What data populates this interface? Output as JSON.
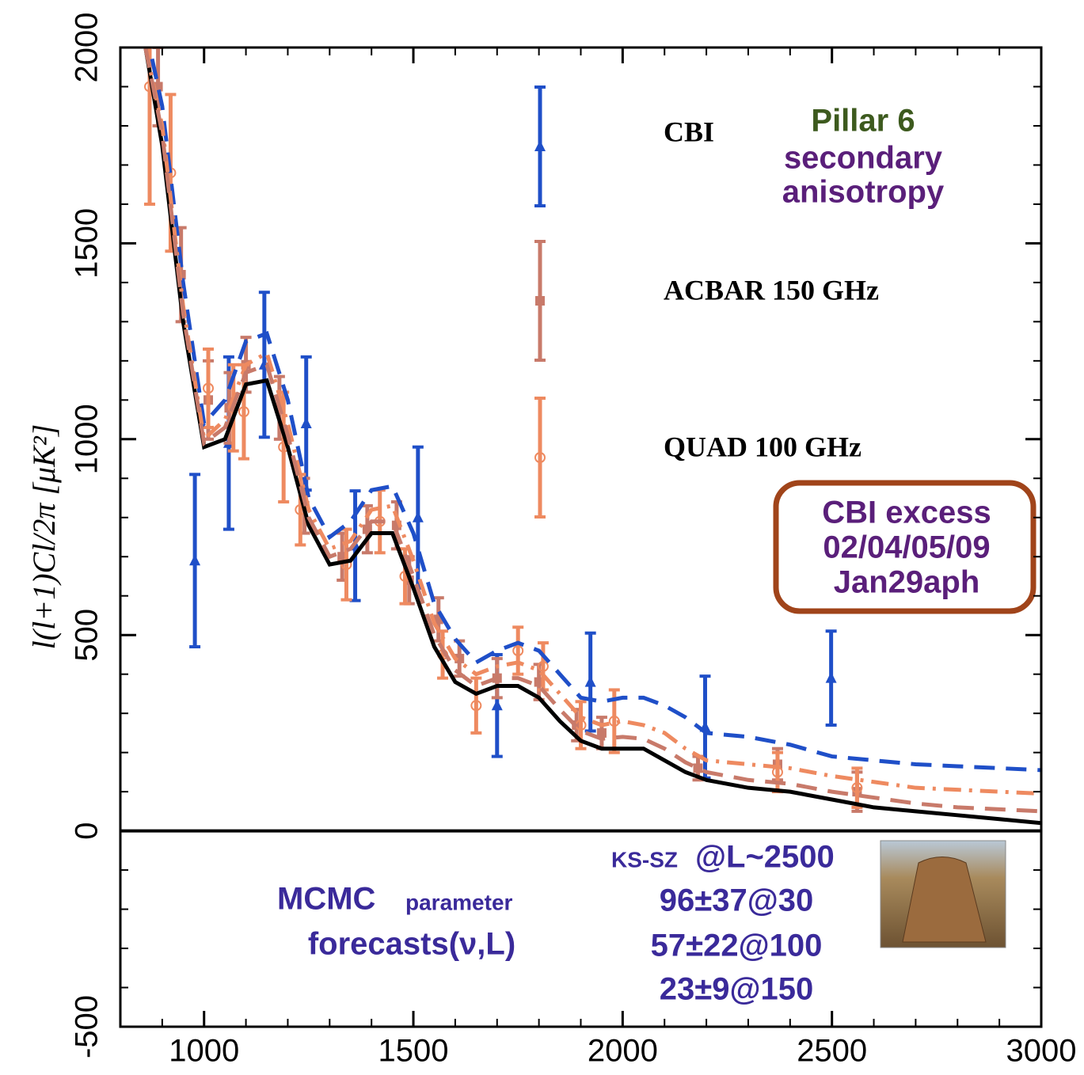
{
  "chart_data": {
    "type": "errorbar",
    "ylabel": "l(l+1)Cl/2π [μK²]",
    "xlim": [
      800,
      3000
    ],
    "xticks": [
      1000,
      1500,
      2000,
      2500,
      3000
    ],
    "ylim": [
      -500,
      2000
    ],
    "yticks": [
      -500,
      0,
      500,
      1000,
      1500,
      2000
    ],
    "series": [
      {
        "name": "CBI",
        "kind": "points",
        "marker": "triangle",
        "color": "#1f4fc8",
        "x": [
          978,
          1059,
          1144,
          1244,
          1361,
          1511,
          1700,
          1923,
          2197,
          2498
        ],
        "values": [
          690,
          990,
          1190,
          1040,
          728,
          800,
          320,
          380,
          265,
          390
        ],
        "errors": [
          220,
          220,
          185,
          170,
          140,
          180,
          130,
          125,
          130,
          120
        ]
      },
      {
        "name": "ACBAR 150 GHz",
        "kind": "points",
        "marker": "square",
        "color": "#c87a6a",
        "x": [
          890,
          945,
          1010,
          1060,
          1100,
          1180,
          1240,
          1330,
          1390,
          1460,
          1490,
          1560,
          1610,
          1700,
          1800,
          1890,
          1950,
          2180,
          2370,
          2560
        ],
        "values": [
          1900,
          1420,
          1100,
          1080,
          1190,
          1080,
          830,
          700,
          770,
          780,
          640,
          540,
          440,
          390,
          380,
          270,
          250,
          160,
          170,
          100
        ],
        "errors": [
          100,
          120,
          100,
          90,
          70,
          80,
          70,
          60,
          60,
          60,
          60,
          55,
          45,
          50,
          45,
          40,
          40,
          30,
          40,
          50
        ]
      },
      {
        "name": "QUAD 100 GHz",
        "kind": "points",
        "marker": "circle",
        "color": "#ee8a60",
        "x": [
          870,
          920,
          1010,
          1070,
          1095,
          1190,
          1230,
          1340,
          1420,
          1480,
          1570,
          1650,
          1750,
          1810,
          1900,
          1980,
          2370,
          2560
        ],
        "values": [
          1900,
          1680,
          1130,
          1080,
          1070,
          980,
          820,
          680,
          790,
          650,
          450,
          320,
          460,
          420,
          270,
          280,
          150,
          110
        ],
        "errors": [
          300,
          200,
          100,
          110,
          120,
          140,
          90,
          90,
          80,
          70,
          60,
          70,
          60,
          60,
          60,
          80,
          50,
          50
        ]
      },
      {
        "kind": "line",
        "style": "solid",
        "color": "#000000",
        "x": [
          860,
          900,
          950,
          1000,
          1050,
          1100,
          1150,
          1200,
          1250,
          1300,
          1350,
          1400,
          1450,
          1500,
          1550,
          1600,
          1650,
          1700,
          1750,
          1800,
          1850,
          1900,
          1950,
          2000,
          2050,
          2100,
          2150,
          2200,
          2300,
          2400,
          2500,
          2600,
          2700,
          2800,
          2900,
          3000
        ],
        "values": [
          2000,
          1750,
          1300,
          980,
          1000,
          1140,
          1150,
          980,
          780,
          680,
          690,
          760,
          760,
          620,
          470,
          380,
          350,
          370,
          370,
          340,
          280,
          230,
          210,
          210,
          210,
          180,
          150,
          130,
          110,
          100,
          80,
          60,
          50,
          40,
          30,
          20
        ]
      },
      {
        "kind": "line",
        "style": "dashed",
        "color": "#1f4fc8",
        "x": [
          860,
          900,
          950,
          1000,
          1050,
          1100,
          1150,
          1200,
          1250,
          1300,
          1350,
          1400,
          1450,
          1500,
          1550,
          1600,
          1650,
          1700,
          1750,
          1800,
          1850,
          1900,
          1950,
          2000,
          2050,
          2100,
          2150,
          2200,
          2300,
          2400,
          2500,
          2600,
          2700,
          2800,
          2900,
          3000
        ],
        "values": [
          2050,
          1850,
          1400,
          1040,
          1100,
          1250,
          1270,
          1100,
          850,
          750,
          790,
          870,
          880,
          760,
          580,
          490,
          430,
          460,
          480,
          460,
          400,
          340,
          330,
          340,
          340,
          320,
          290,
          250,
          240,
          220,
          190,
          180,
          170,
          165,
          160,
          155
        ]
      },
      {
        "kind": "line",
        "style": "dashdot",
        "color": "#ee8a60",
        "x": [
          860,
          900,
          950,
          1000,
          1050,
          1100,
          1150,
          1200,
          1250,
          1300,
          1350,
          1400,
          1450,
          1500,
          1550,
          1600,
          1650,
          1700,
          1750,
          1800,
          1850,
          1900,
          1950,
          2000,
          2050,
          2100,
          2150,
          2200,
          2300,
          2400,
          2500,
          2600,
          2700,
          2800,
          2900,
          3000
        ],
        "values": [
          2000,
          1800,
          1340,
          1000,
          1050,
          1190,
          1220,
          1040,
          820,
          720,
          740,
          820,
          830,
          690,
          530,
          440,
          400,
          420,
          430,
          410,
          350,
          290,
          270,
          280,
          270,
          250,
          210,
          180,
          170,
          160,
          140,
          125,
          110,
          105,
          100,
          95
        ]
      },
      {
        "kind": "line",
        "style": "dashed",
        "color": "#c87a6a",
        "x": [
          860,
          900,
          950,
          1000,
          1050,
          1100,
          1150,
          1200,
          1250,
          1300,
          1350,
          1400,
          1450,
          1500,
          1550,
          1600,
          1650,
          1700,
          1750,
          1800,
          1850,
          1900,
          1950,
          2000,
          2050,
          2100,
          2150,
          2200,
          2300,
          2400,
          2500,
          2600,
          2700,
          2800,
          2900,
          3000
        ],
        "values": [
          2000,
          1780,
          1320,
          990,
          1030,
          1170,
          1190,
          1010,
          800,
          700,
          720,
          790,
          790,
          650,
          500,
          410,
          370,
          390,
          390,
          370,
          310,
          255,
          235,
          240,
          235,
          210,
          175,
          150,
          130,
          120,
          100,
          85,
          70,
          60,
          55,
          50
        ]
      }
    ],
    "pillar": {
      "title": "Pillar 6",
      "lines": [
        "secondary",
        "anisotropy"
      ]
    },
    "excess_box": [
      "CBI excess",
      "02/04/05/09",
      "Jan29aph"
    ],
    "mcmc": {
      "big": "MCMC",
      "small": "parameter",
      "line2": "forecasts(ν,L)"
    },
    "kssz": {
      "small": "KS-SZ",
      "head": "@L~2500",
      "lines": [
        "96±37@30",
        "57±22@100",
        "23±9@150"
      ]
    }
  }
}
